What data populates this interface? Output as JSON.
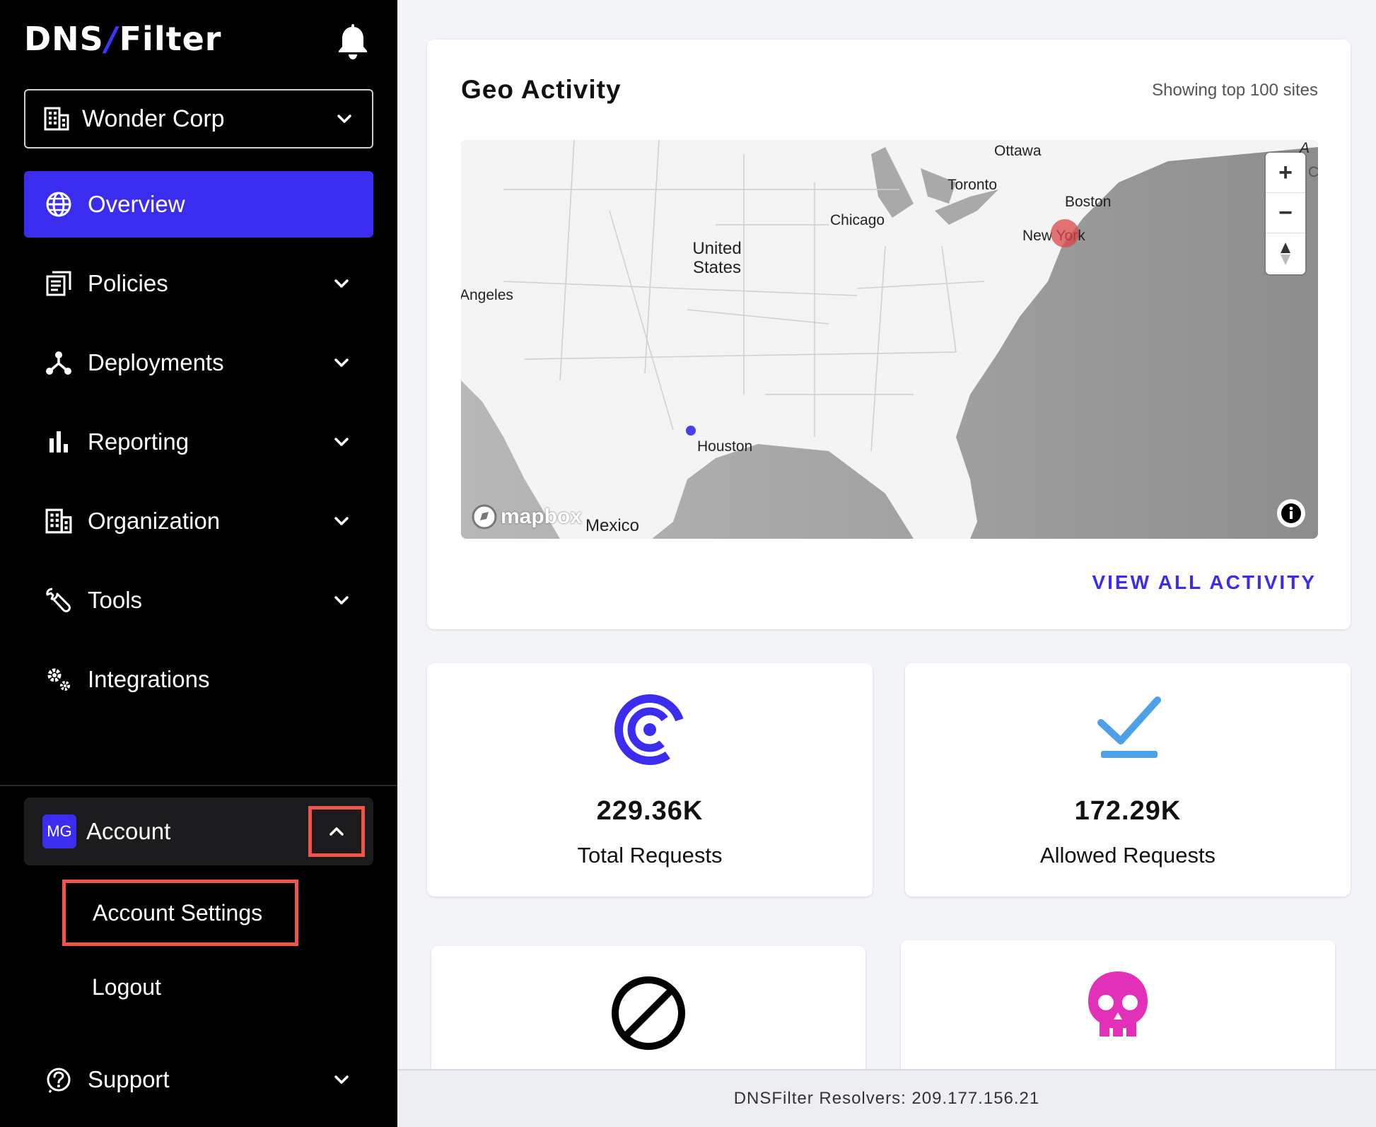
{
  "sidebar": {
    "logo_left": "DNS",
    "logo_right": "Filter",
    "org_select": {
      "value": "Wonder Corp"
    },
    "nav": [
      {
        "label": "Overview",
        "icon": "globe-icon",
        "active": true
      },
      {
        "label": "Policies",
        "icon": "policies-icon"
      },
      {
        "label": "Deployments",
        "icon": "deployments-icon"
      },
      {
        "label": "Reporting",
        "icon": "bar-chart-icon"
      },
      {
        "label": "Organization",
        "icon": "building-icon"
      },
      {
        "label": "Tools",
        "icon": "wrench-icon"
      },
      {
        "label": "Integrations",
        "icon": "gears-icon"
      }
    ],
    "account": {
      "avatar": "MG",
      "label": "Account",
      "submenu": {
        "settings": "Account Settings",
        "logout": "Logout"
      }
    },
    "support": {
      "label": "Support"
    }
  },
  "geo": {
    "title": "Geo Activity",
    "subtitle": "Showing top 100 sites",
    "map_labels": {
      "ottawa": "Ottawa",
      "toronto": "Toronto",
      "boston": "Boston",
      "chicago": "Chicago",
      "new_york": "New York",
      "united_states": "United States",
      "los_angeles": "Angeles",
      "houston": "Houston",
      "mexico": "Mexico",
      "edge_a": "A",
      "edge_c": "C"
    },
    "map_controls": {
      "zoom_in": "+",
      "zoom_out": "−"
    },
    "mapbox": "mapbox",
    "view_all": "VIEW ALL ACTIVITY"
  },
  "stats": {
    "total": {
      "value": "229.36K",
      "label": "Total Requests",
      "color": "#3b2df0"
    },
    "allowed": {
      "value": "172.29K",
      "label": "Allowed Requests",
      "color": "#4ea0e8"
    },
    "blocked_icon_color": "#000000",
    "threats_icon_color": "#e231b8"
  },
  "footer": {
    "text": "DNSFilter Resolvers: 209.177.156.21"
  }
}
